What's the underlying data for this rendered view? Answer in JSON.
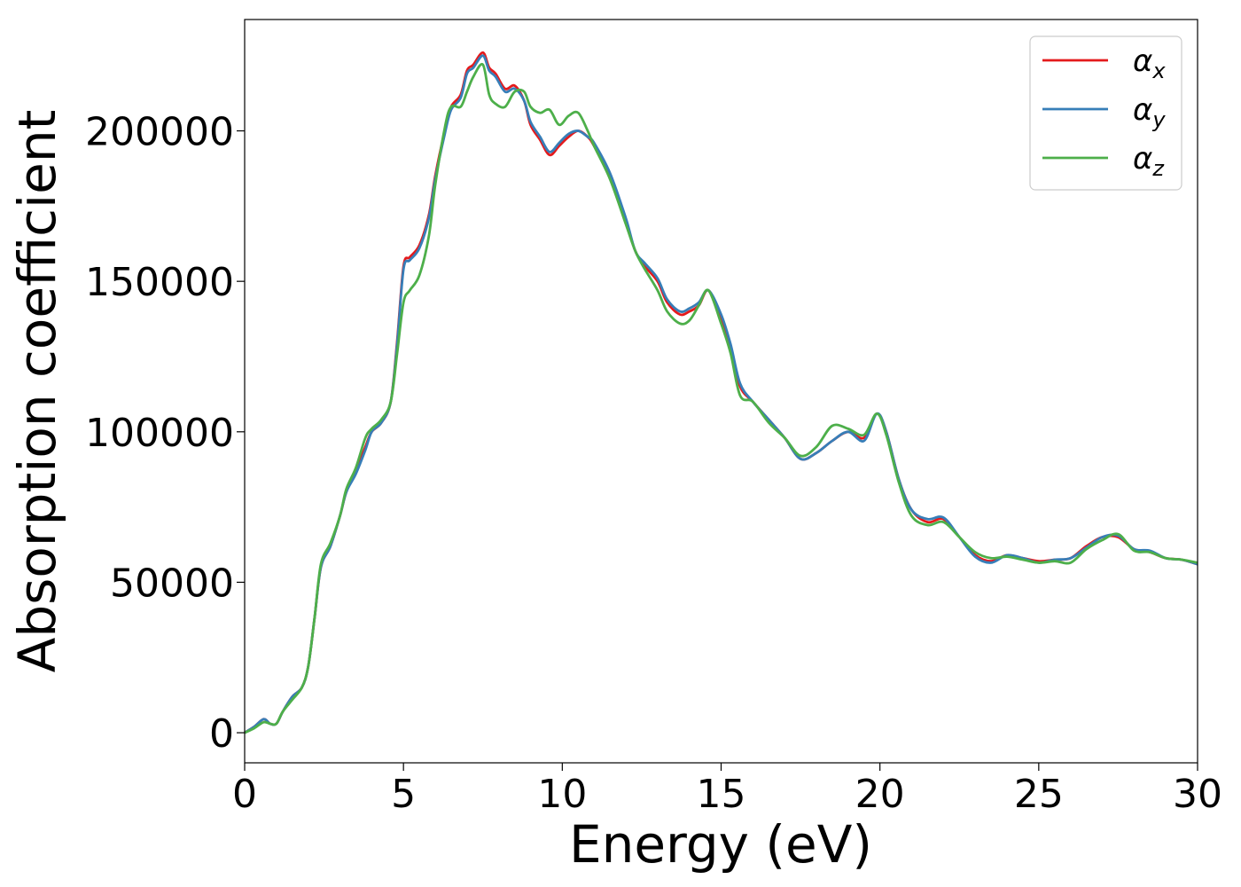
{
  "chart_data": {
    "type": "line",
    "title": "",
    "xlabel": "Energy (eV)",
    "ylabel": "Absorption coefficient",
    "xlim": [
      0,
      30
    ],
    "ylim": [
      -10000,
      237000
    ],
    "xticks": [
      0,
      5,
      10,
      15,
      20,
      25,
      30
    ],
    "xtick_labels": [
      "0",
      "5",
      "10",
      "15",
      "20",
      "25",
      "30"
    ],
    "yticks": [
      0,
      50000,
      100000,
      150000,
      200000
    ],
    "ytick_labels": [
      "0",
      "50000",
      "100000",
      "150000",
      "200000"
    ],
    "grid": false,
    "legend_position": "top-right",
    "series": [
      {
        "name": "αx",
        "symbol": "α",
        "subscript": "x",
        "color": "#e41a1c",
        "x": [
          0,
          0.3,
          0.6,
          0.8,
          1.0,
          1.2,
          1.5,
          1.8,
          2.0,
          2.2,
          2.4,
          2.7,
          3.0,
          3.2,
          3.5,
          3.8,
          4.0,
          4.3,
          4.6,
          4.8,
          5.0,
          5.2,
          5.5,
          5.8,
          6.0,
          6.3,
          6.5,
          6.8,
          7.0,
          7.2,
          7.5,
          7.7,
          7.9,
          8.2,
          8.5,
          8.8,
          9.0,
          9.3,
          9.6,
          9.9,
          10.2,
          10.5,
          10.8,
          11.0,
          11.5,
          12.0,
          12.3,
          12.6,
          13.0,
          13.3,
          13.7,
          14.0,
          14.3,
          14.6,
          15.0,
          15.3,
          15.6,
          16.0,
          16.5,
          17.0,
          17.5,
          18.0,
          18.5,
          19.0,
          19.5,
          19.9,
          20.2,
          20.6,
          21.0,
          21.5,
          22.0,
          22.5,
          23.0,
          23.5,
          24.0,
          24.5,
          25.0,
          25.5,
          26.0,
          26.5,
          27.0,
          27.5,
          28.0,
          28.5,
          29.0,
          29.5,
          30.0
        ],
        "y": [
          0,
          2000,
          4500,
          3000,
          3000,
          7000,
          12000,
          15000,
          22000,
          38000,
          55000,
          62000,
          72000,
          80000,
          87000,
          95000,
          100000,
          103000,
          110000,
          130000,
          155000,
          158000,
          162000,
          172000,
          185000,
          200000,
          208000,
          212000,
          220000,
          222000,
          226000,
          221000,
          219000,
          214000,
          215000,
          210000,
          202000,
          197000,
          192000,
          195000,
          198000,
          200000,
          198000,
          195000,
          185000,
          170000,
          160000,
          155000,
          150000,
          143000,
          139000,
          140000,
          142000,
          147000,
          138000,
          128000,
          115000,
          110000,
          104000,
          98000,
          91000,
          93000,
          97000,
          100000,
          98000,
          106000,
          100000,
          84000,
          74000,
          70000,
          71000,
          65000,
          59000,
          57000,
          59000,
          58000,
          57000,
          57500,
          58000,
          62000,
          65000,
          65000,
          61000,
          60000,
          58000,
          57500,
          56000
        ]
      },
      {
        "name": "αy",
        "symbol": "α",
        "subscript": "y",
        "color": "#377eb8",
        "x": [
          0,
          0.3,
          0.6,
          0.8,
          1.0,
          1.2,
          1.5,
          1.8,
          2.0,
          2.2,
          2.4,
          2.7,
          3.0,
          3.2,
          3.5,
          3.8,
          4.0,
          4.3,
          4.6,
          4.8,
          5.0,
          5.2,
          5.5,
          5.8,
          6.0,
          6.3,
          6.5,
          6.8,
          7.0,
          7.2,
          7.5,
          7.7,
          7.9,
          8.2,
          8.5,
          8.8,
          9.0,
          9.3,
          9.6,
          9.9,
          10.2,
          10.5,
          10.8,
          11.0,
          11.5,
          12.0,
          12.3,
          12.6,
          13.0,
          13.3,
          13.7,
          14.0,
          14.3,
          14.6,
          15.0,
          15.3,
          15.6,
          16.0,
          16.5,
          17.0,
          17.5,
          18.0,
          18.5,
          19.0,
          19.5,
          19.9,
          20.2,
          20.6,
          21.0,
          21.5,
          22.0,
          22.5,
          23.0,
          23.5,
          24.0,
          24.5,
          25.0,
          25.5,
          26.0,
          26.5,
          27.0,
          27.5,
          28.0,
          28.5,
          29.0,
          29.5,
          30.0
        ],
        "y": [
          0,
          2000,
          4500,
          3000,
          3000,
          7000,
          12000,
          15000,
          22000,
          38000,
          55000,
          62000,
          72000,
          80000,
          86000,
          94000,
          100000,
          103000,
          110000,
          129000,
          154000,
          157000,
          161000,
          171000,
          184000,
          199000,
          207000,
          211000,
          219000,
          221000,
          225000,
          220000,
          218000,
          213000,
          214000,
          210000,
          203000,
          198000,
          193000,
          196000,
          199000,
          200000,
          198000,
          196000,
          186000,
          171000,
          160000,
          156000,
          151000,
          144000,
          140000,
          141000,
          143000,
          147000,
          139000,
          129000,
          116000,
          110000,
          104000,
          98000,
          91000,
          93000,
          97000,
          100000,
          97000,
          106000,
          100000,
          84000,
          74000,
          71000,
          71500,
          65000,
          58500,
          56500,
          59000,
          58000,
          56500,
          57500,
          58000,
          61500,
          65000,
          65500,
          61000,
          60500,
          58000,
          57500,
          56000
        ]
      },
      {
        "name": "αz",
        "symbol": "α",
        "subscript": "z",
        "color": "#4daf4a",
        "x": [
          0,
          0.3,
          0.6,
          0.8,
          1.0,
          1.2,
          1.5,
          1.8,
          2.0,
          2.2,
          2.4,
          2.7,
          3.0,
          3.2,
          3.5,
          3.8,
          4.0,
          4.3,
          4.6,
          4.8,
          5.0,
          5.2,
          5.5,
          5.8,
          6.0,
          6.3,
          6.5,
          6.8,
          7.0,
          7.2,
          7.5,
          7.7,
          7.9,
          8.2,
          8.5,
          8.8,
          9.0,
          9.3,
          9.6,
          9.9,
          10.2,
          10.5,
          10.8,
          11.0,
          11.5,
          12.0,
          12.3,
          12.6,
          13.0,
          13.3,
          13.7,
          14.0,
          14.3,
          14.6,
          15.0,
          15.3,
          15.6,
          16.0,
          16.5,
          17.0,
          17.5,
          18.0,
          18.5,
          19.0,
          19.5,
          19.9,
          20.2,
          20.6,
          21.0,
          21.5,
          22.0,
          22.5,
          23.0,
          23.5,
          24.0,
          24.5,
          25.0,
          25.5,
          26.0,
          26.5,
          27.0,
          27.5,
          28.0,
          28.5,
          29.0,
          29.5,
          30.0
        ],
        "y": [
          0,
          1500,
          3500,
          3000,
          3000,
          7000,
          11000,
          15000,
          22000,
          38000,
          56000,
          63000,
          72000,
          81000,
          88000,
          98000,
          101000,
          104000,
          110000,
          126000,
          143000,
          147000,
          152000,
          165000,
          182000,
          201000,
          208000,
          208000,
          213000,
          218000,
          222000,
          212000,
          209000,
          208000,
          213000,
          213000,
          208000,
          206000,
          207000,
          202000,
          205000,
          206000,
          200000,
          195000,
          184000,
          169000,
          160000,
          154000,
          147000,
          140000,
          136000,
          137000,
          142000,
          147000,
          136000,
          126000,
          112000,
          110000,
          103000,
          98000,
          92000,
          95000,
          102000,
          101000,
          99000,
          106000,
          99000,
          83000,
          72000,
          69000,
          70000,
          65000,
          60000,
          58000,
          58500,
          57500,
          56500,
          57000,
          56500,
          61000,
          64000,
          66000,
          60500,
          60000,
          58000,
          57500,
          56500
        ]
      }
    ]
  }
}
